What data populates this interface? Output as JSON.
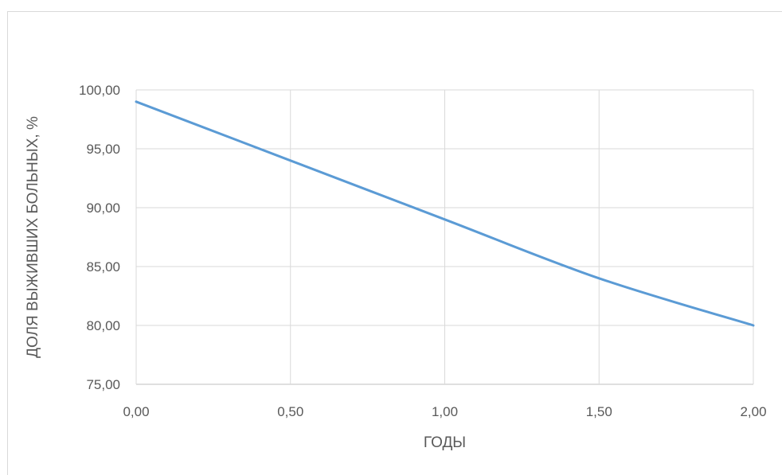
{
  "chart_data": {
    "type": "line",
    "title": "",
    "xlabel": "ГОДЫ",
    "ylabel": "ДОЛЯ ВЫЖИВШИХ БОЛЬНЫХ, %",
    "xlim": [
      0,
      2
    ],
    "ylim": [
      75,
      100
    ],
    "x_ticks": [
      "0,00",
      "0,50",
      "1,00",
      "1,50",
      "2,00"
    ],
    "y_ticks": [
      "75,00",
      "80,00",
      "85,00",
      "90,00",
      "95,00",
      "100,00"
    ],
    "grid": true,
    "legend": "none",
    "series": [
      {
        "color": "#5b9bd5",
        "x": [
          0,
          0.5,
          1.0,
          1.5,
          2.0
        ],
        "y": [
          99,
          94,
          89,
          84,
          80
        ]
      }
    ]
  }
}
